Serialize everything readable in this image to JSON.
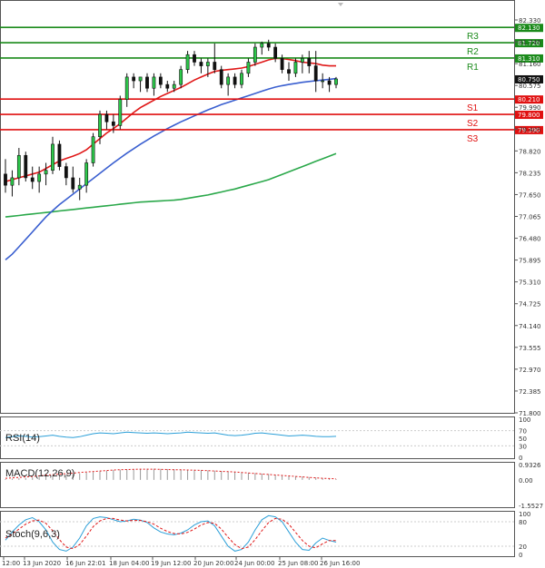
{
  "chart_data": {
    "type": "candlestick",
    "instrument_note": "",
    "price_axis": {
      "ticks": [
        "82.330",
        "81.745",
        "81.160",
        "80.575",
        "79.990",
        "79.405",
        "78.820",
        "78.235",
        "77.650",
        "77.065",
        "76.480",
        "75.895",
        "75.310",
        "74.725",
        "74.140",
        "73.555",
        "72.970",
        "72.385",
        "71.800"
      ],
      "range": [
        71.8,
        82.33
      ],
      "current_price_label": "80.750",
      "current_price": 80.75
    },
    "levels": [
      {
        "name": "R3",
        "value": 82.13,
        "label": "82.130",
        "color": "#1a8a1a"
      },
      {
        "name": "R2",
        "value": 81.72,
        "label": "81.720",
        "color": "#1a8a1a"
      },
      {
        "name": "R1",
        "value": 81.31,
        "label": "81.310",
        "color": "#1a8a1a"
      },
      {
        "name": "S1",
        "value": 80.21,
        "label": "80.210",
        "color": "#e01010"
      },
      {
        "name": "S2",
        "value": 79.8,
        "label": "79.800",
        "color": "#e01010"
      },
      {
        "name": "S3",
        "value": 79.39,
        "label": "79.390",
        "color": "#e01010"
      }
    ],
    "x_labels": [
      "12:00",
      "13 Jun 2020",
      "16 Jun 22:01",
      "18 Jun 04:00",
      "19 Jun 12:00",
      "20 Jun 20:00",
      "24 Jun 00:00",
      "25 Jun 08:00",
      "26 Jun 16:00"
    ],
    "candles": [
      [
        78.2,
        78.6,
        77.7,
        77.9
      ],
      [
        77.9,
        78.3,
        77.6,
        78.1
      ],
      [
        78.1,
        78.9,
        77.9,
        78.7
      ],
      [
        78.7,
        78.8,
        78.0,
        78.1
      ],
      [
        78.1,
        78.4,
        77.8,
        78.0
      ],
      [
        78.0,
        78.4,
        77.7,
        78.2
      ],
      [
        78.2,
        78.5,
        77.9,
        78.3
      ],
      [
        78.3,
        79.2,
        78.2,
        79.0
      ],
      [
        79.0,
        79.1,
        78.3,
        78.4
      ],
      [
        78.4,
        78.5,
        77.9,
        78.1
      ],
      [
        78.1,
        78.4,
        77.7,
        77.8
      ],
      [
        77.8,
        78.1,
        77.5,
        77.9
      ],
      [
        77.9,
        78.6,
        77.7,
        78.5
      ],
      [
        78.5,
        79.3,
        78.4,
        79.2
      ],
      [
        79.2,
        79.9,
        79.0,
        79.8
      ],
      [
        79.8,
        79.9,
        79.4,
        79.6
      ],
      [
        79.6,
        79.8,
        79.3,
        79.5
      ],
      [
        79.5,
        80.3,
        79.4,
        80.2
      ],
      [
        80.2,
        80.9,
        80.0,
        80.8
      ],
      [
        80.8,
        80.9,
        80.5,
        80.7
      ],
      [
        80.7,
        80.8,
        80.4,
        80.8
      ],
      [
        80.8,
        80.9,
        80.4,
        80.5
      ],
      [
        80.5,
        80.9,
        80.3,
        80.8
      ],
      [
        80.8,
        80.9,
        80.5,
        80.6
      ],
      [
        80.6,
        80.7,
        80.4,
        80.5
      ],
      [
        80.5,
        80.7,
        80.4,
        80.6
      ],
      [
        80.6,
        81.1,
        80.5,
        81.0
      ],
      [
        81.0,
        81.5,
        80.9,
        81.4
      ],
      [
        81.4,
        81.5,
        81.1,
        81.2
      ],
      [
        81.2,
        81.3,
        80.9,
        81.1
      ],
      [
        81.1,
        81.3,
        80.8,
        81.2
      ],
      [
        81.2,
        81.7,
        80.9,
        81.0
      ],
      [
        81.0,
        81.1,
        80.5,
        80.6
      ],
      [
        80.6,
        80.9,
        80.3,
        80.8
      ],
      [
        80.8,
        80.9,
        80.5,
        80.6
      ],
      [
        80.6,
        81.0,
        80.5,
        80.9
      ],
      [
        80.9,
        81.3,
        80.8,
        81.2
      ],
      [
        81.2,
        81.7,
        81.1,
        81.6
      ],
      [
        81.6,
        81.75,
        81.4,
        81.7
      ],
      [
        81.7,
        81.8,
        81.5,
        81.6
      ],
      [
        81.6,
        81.7,
        81.2,
        81.3
      ],
      [
        81.3,
        81.4,
        80.9,
        81.0
      ],
      [
        81.0,
        81.2,
        80.7,
        80.9
      ],
      [
        80.9,
        81.3,
        80.8,
        81.2
      ],
      [
        81.2,
        81.4,
        80.9,
        81.3
      ],
      [
        81.3,
        81.5,
        80.9,
        81.1
      ],
      [
        81.1,
        81.5,
        80.4,
        80.7
      ],
      [
        80.7,
        80.9,
        80.5,
        80.7
      ],
      [
        80.7,
        80.8,
        80.4,
        80.6
      ],
      [
        80.6,
        80.8,
        80.5,
        80.75
      ]
    ],
    "ma_red": [
      78.0,
      78.05,
      78.1,
      78.15,
      78.2,
      78.25,
      78.35,
      78.45,
      78.55,
      78.62,
      78.68,
      78.75,
      78.85,
      79.0,
      79.15,
      79.3,
      79.42,
      79.55,
      79.7,
      79.85,
      79.98,
      80.08,
      80.18,
      80.28,
      80.36,
      80.44,
      80.52,
      80.62,
      80.72,
      80.8,
      80.88,
      80.95,
      80.98,
      81.0,
      81.02,
      81.04,
      81.08,
      81.14,
      81.2,
      81.26,
      81.3,
      81.3,
      81.27,
      81.24,
      81.2,
      81.18,
      81.16,
      81.12,
      81.1,
      81.1
    ],
    "ma_blue": [
      75.9,
      76.05,
      76.25,
      76.45,
      76.65,
      76.85,
      77.05,
      77.22,
      77.38,
      77.52,
      77.66,
      77.8,
      77.94,
      78.08,
      78.22,
      78.36,
      78.5,
      78.63,
      78.76,
      78.88,
      79.0,
      79.11,
      79.22,
      79.32,
      79.42,
      79.51,
      79.6,
      79.68,
      79.76,
      79.84,
      79.92,
      79.99,
      80.06,
      80.12,
      80.18,
      80.24,
      80.3,
      80.36,
      80.42,
      80.48,
      80.53,
      80.57,
      80.6,
      80.63,
      80.66,
      80.68,
      80.7,
      80.72,
      80.74,
      80.76
    ],
    "ma_green": [
      77.05,
      77.07,
      77.09,
      77.11,
      77.13,
      77.15,
      77.17,
      77.19,
      77.21,
      77.23,
      77.25,
      77.27,
      77.29,
      77.31,
      77.33,
      77.35,
      77.37,
      77.39,
      77.41,
      77.43,
      77.45,
      77.46,
      77.47,
      77.48,
      77.49,
      77.5,
      77.52,
      77.55,
      77.58,
      77.61,
      77.64,
      77.68,
      77.72,
      77.76,
      77.8,
      77.85,
      77.9,
      77.95,
      78.0,
      78.05,
      78.12,
      78.19,
      78.26,
      78.33,
      78.4,
      78.47,
      78.54,
      78.61,
      78.68,
      78.75
    ],
    "rsi": {
      "label": "RSI(14)",
      "ticks": [
        "100",
        "70",
        "50",
        "30",
        "0"
      ],
      "values": [
        52,
        54,
        56,
        55,
        53,
        54,
        56,
        58,
        55,
        53,
        52,
        54,
        58,
        62,
        64,
        63,
        62,
        64,
        66,
        65,
        64,
        63,
        64,
        63,
        62,
        63,
        64,
        66,
        65,
        64,
        63,
        64,
        61,
        58,
        57,
        58,
        60,
        63,
        64,
        62,
        60,
        58,
        56,
        57,
        58,
        57,
        55,
        54,
        54,
        55
      ]
    },
    "macd": {
      "label": "MACD(12,26,9)",
      "ticks": [
        "0.9326",
        "0.00",
        "-1.5527"
      ],
      "hist": [
        0.05,
        0.08,
        0.1,
        0.12,
        0.15,
        0.18,
        0.22,
        0.26,
        0.3,
        0.33,
        0.36,
        0.4,
        0.44,
        0.48,
        0.52,
        0.56,
        0.6,
        0.62,
        0.64,
        0.66,
        0.67,
        0.68,
        0.68,
        0.67,
        0.66,
        0.65,
        0.64,
        0.63,
        0.62,
        0.6,
        0.58,
        0.56,
        0.54,
        0.52,
        0.5,
        0.47,
        0.44,
        0.41,
        0.38,
        0.35,
        0.32,
        0.29,
        0.26,
        0.23,
        0.2,
        0.17,
        0.14,
        0.11,
        0.08,
        0.05
      ],
      "signal": [
        0.1,
        0.12,
        0.15,
        0.18,
        0.21,
        0.24,
        0.28,
        0.32,
        0.35,
        0.38,
        0.41,
        0.45,
        0.48,
        0.51,
        0.54,
        0.57,
        0.6,
        0.62,
        0.63,
        0.64,
        0.65,
        0.65,
        0.65,
        0.64,
        0.63,
        0.62,
        0.61,
        0.6,
        0.59,
        0.58,
        0.56,
        0.54,
        0.52,
        0.5,
        0.48,
        0.45,
        0.42,
        0.39,
        0.36,
        0.33,
        0.3,
        0.27,
        0.24,
        0.21,
        0.18,
        0.15,
        0.12,
        0.1,
        0.08,
        0.06
      ]
    },
    "stoch": {
      "label": "Stoch(9,6,3)",
      "ticks": [
        "100",
        "80",
        "20",
        "0"
      ],
      "k": [
        35,
        55,
        72,
        85,
        90,
        80,
        60,
        30,
        12,
        8,
        18,
        40,
        70,
        88,
        92,
        90,
        85,
        80,
        82,
        86,
        84,
        78,
        65,
        55,
        50,
        48,
        52,
        60,
        72,
        80,
        82,
        70,
        45,
        20,
        8,
        12,
        30,
        60,
        85,
        95,
        92,
        80,
        55,
        30,
        12,
        10,
        28,
        40,
        34,
        30
      ],
      "d": [
        40,
        50,
        62,
        74,
        82,
        84,
        76,
        58,
        36,
        18,
        14,
        24,
        45,
        68,
        82,
        88,
        88,
        84,
        82,
        83,
        83,
        80,
        74,
        64,
        56,
        51,
        50,
        54,
        62,
        72,
        78,
        76,
        62,
        42,
        24,
        14,
        18,
        36,
        58,
        78,
        88,
        86,
        74,
        54,
        34,
        20,
        16,
        26,
        34,
        34
      ]
    }
  }
}
